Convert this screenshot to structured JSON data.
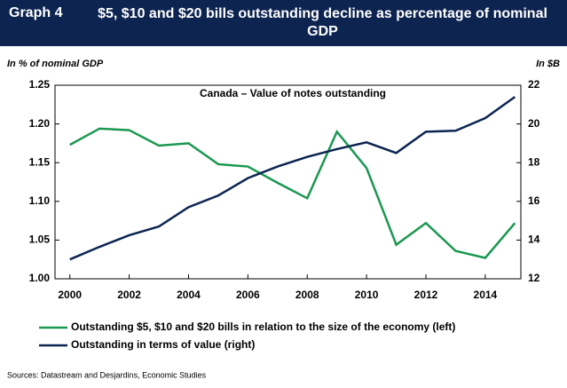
{
  "chart_data": {
    "type": "line",
    "label": "Graph 4",
    "title": "$5, $10 and $20 bills outstanding decline as percentage of nominal GDP",
    "subtitle": "Canada – Value of notes outstanding",
    "ylabel": "In % of nominal GDP",
    "y2label": "In $B",
    "source": "Sources: Datastream and Desjardins, Economic Studies",
    "x": [
      2000,
      2001,
      2002,
      2003,
      2004,
      2005,
      2006,
      2007,
      2008,
      2009,
      2010,
      2011,
      2012,
      2013,
      2014,
      2015
    ],
    "xlim": [
      1999.5,
      2015.2
    ],
    "xticks": [
      2000,
      2002,
      2004,
      2006,
      2008,
      2010,
      2012,
      2014
    ],
    "ylim": [
      1.0,
      1.25
    ],
    "yticks": [
      {
        "value": 1.0,
        "label": "1.00"
      },
      1.05,
      {
        "value": 1.1,
        "label": "1.10"
      },
      1.15,
      {
        "value": 1.2,
        "label": "1.20"
      },
      1.25
    ],
    "y2lim": [
      12,
      22
    ],
    "y2ticks": [
      12,
      14,
      16,
      18,
      20,
      22
    ],
    "legend": "bottom",
    "series": [
      {
        "name": "Outstanding $5, $10 and $20 bills in relation to the size of the economy (left)",
        "color": "#1a9850",
        "values": [
          1.173,
          1.194,
          1.192,
          1.172,
          1.175,
          1.148,
          1.145,
          1.124,
          1.104,
          1.19,
          1.143,
          1.044,
          1.072,
          1.036,
          1.027,
          1.072
        ]
      },
      {
        "name": "Outstanding in terms of value (right)",
        "color": "#0d2451",
        "axis": "y2",
        "values": [
          13.0,
          13.65,
          14.25,
          14.7,
          15.7,
          16.3,
          17.2,
          17.8,
          18.3,
          18.7,
          19.05,
          18.5,
          19.6,
          19.65,
          20.3,
          21.4
        ]
      }
    ]
  }
}
